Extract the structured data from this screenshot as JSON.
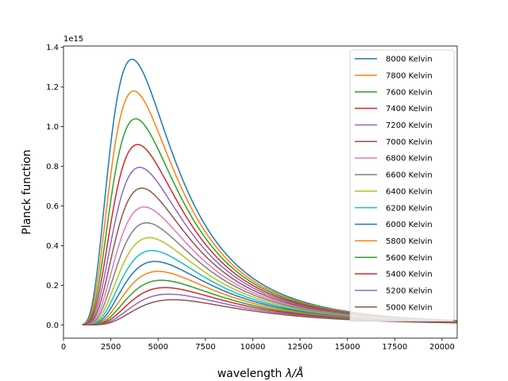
{
  "chart_data": {
    "type": "line",
    "title": "",
    "xlabel": "wavelength",
    "xlabel_symbol": "λ/Å",
    "ylabel": "Planck function",
    "y_offset_text": "1e15",
    "xlim": [
      0,
      20800
    ],
    "ylim": [
      -0.067,
      1.407
    ],
    "x_ticks": [
      0,
      2500,
      5000,
      7500,
      10000,
      12500,
      15000,
      17500,
      20000
    ],
    "y_ticks": [
      0.0,
      0.2,
      0.4,
      0.6,
      0.8,
      1.0,
      1.2,
      1.4
    ],
    "x_tick_labels": [
      "0",
      "2500",
      "5000",
      "7500",
      "10000",
      "12500",
      "15000",
      "17500",
      "20000"
    ],
    "y_tick_labels": [
      "0.0",
      "0.2",
      "0.4",
      "0.6",
      "0.8",
      "1.0",
      "1.2",
      "1.4"
    ],
    "x_range_plotted": [
      1000,
      20800
    ],
    "grid": false,
    "legend_position": "top-right",
    "series": [
      {
        "name": "8000 Kelvin",
        "temperature": 8000,
        "peak_x": 3620,
        "peak_y": 1.34,
        "color": "#1f77b4"
      },
      {
        "name": "7800 Kelvin",
        "temperature": 7800,
        "peak_x": 3710,
        "peak_y": 1.18,
        "color": "#ff7f0e"
      },
      {
        "name": "7600 Kelvin",
        "temperature": 7600,
        "peak_x": 3810,
        "peak_y": 1.04,
        "color": "#2ca02c"
      },
      {
        "name": "7400 Kelvin",
        "temperature": 7400,
        "peak_x": 3920,
        "peak_y": 0.91,
        "color": "#d62728"
      },
      {
        "name": "7200 Kelvin",
        "temperature": 7200,
        "peak_x": 4020,
        "peak_y": 0.795,
        "color": "#9467bd"
      },
      {
        "name": "7000 Kelvin",
        "temperature": 7000,
        "peak_x": 4140,
        "peak_y": 0.69,
        "color": "#8c564b"
      },
      {
        "name": "6800 Kelvin",
        "temperature": 6800,
        "peak_x": 4260,
        "peak_y": 0.595,
        "color": "#e377c2"
      },
      {
        "name": "6600 Kelvin",
        "temperature": 6600,
        "peak_x": 4390,
        "peak_y": 0.515,
        "color": "#7f7f7f"
      },
      {
        "name": "6400 Kelvin",
        "temperature": 6400,
        "peak_x": 4530,
        "peak_y": 0.44,
        "color": "#bcbd22"
      },
      {
        "name": "6200 Kelvin",
        "temperature": 6200,
        "peak_x": 4670,
        "peak_y": 0.375,
        "color": "#17becf"
      },
      {
        "name": "6000 Kelvin",
        "temperature": 6000,
        "peak_x": 4830,
        "peak_y": 0.32,
        "color": "#1f77b4"
      },
      {
        "name": "5800 Kelvin",
        "temperature": 5800,
        "peak_x": 5000,
        "peak_y": 0.27,
        "color": "#ff7f0e"
      },
      {
        "name": "5600 Kelvin",
        "temperature": 5600,
        "peak_x": 5170,
        "peak_y": 0.225,
        "color": "#2ca02c"
      },
      {
        "name": "5400 Kelvin",
        "temperature": 5400,
        "peak_x": 5370,
        "peak_y": 0.188,
        "color": "#d62728"
      },
      {
        "name": "5200 Kelvin",
        "temperature": 5200,
        "peak_x": 5570,
        "peak_y": 0.155,
        "color": "#9467bd"
      },
      {
        "name": "5000 Kelvin",
        "temperature": 5000,
        "peak_x": 5800,
        "peak_y": 0.127,
        "color": "#8c564b"
      }
    ]
  }
}
